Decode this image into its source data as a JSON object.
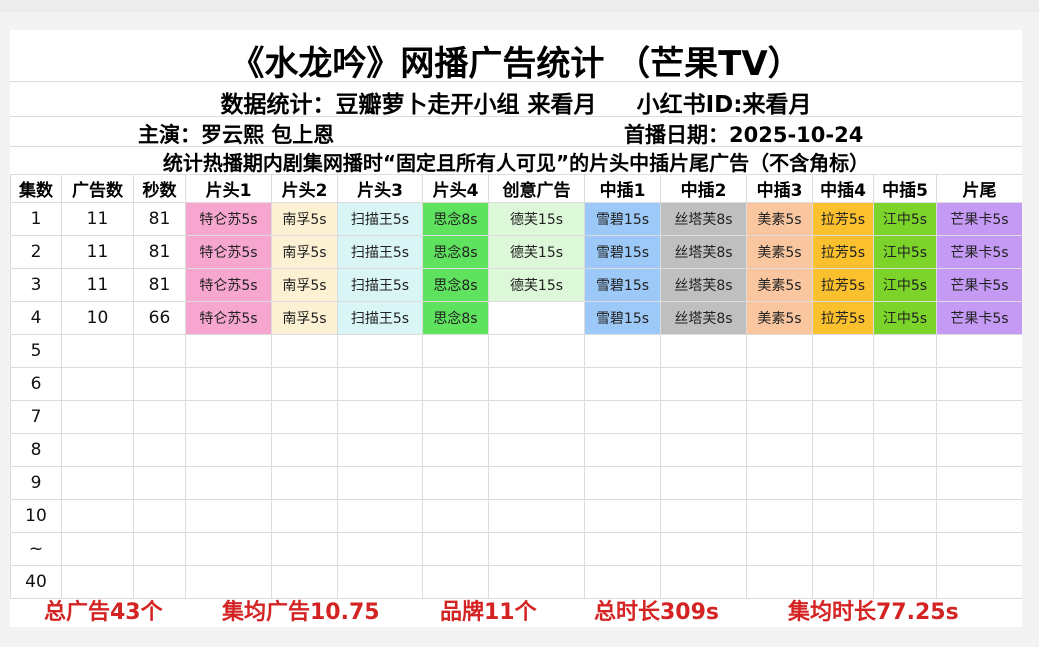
{
  "title": "《水龙吟》网播广告统计 （芒果TV）",
  "subtitle": "数据统计：豆瓣萝卜走开小组 来看月     小红书ID:来看月",
  "actors": "主演：罗云熙 包上恩",
  "premiere": "首播日期：2025-10-24",
  "note": "统计热播期内剧集网播时“固定且所有人可见”的片头中插片尾广告（不含角标）",
  "headers": [
    "集数",
    "广告数",
    "秒数",
    "片头1",
    "片头2",
    "片头3",
    "片头4",
    "创意广告",
    "中插1",
    "中插2",
    "中插3",
    "中插4",
    "中插5",
    "片尾"
  ],
  "slot_colors": [
    "#f7a6cf",
    "#fdf1d4",
    "#d9f5f5",
    "#5fe35f",
    "#ddf8d9",
    "#9cc9f7",
    "#bfbfbf",
    "#f9c6a0",
    "#fbc02d",
    "#7cd42b",
    "#c49af5"
  ],
  "rows": [
    {
      "ep": "1",
      "count": "11",
      "seconds": "81",
      "slots": [
        "特仑苏5s",
        "南孚5s",
        "扫描王5s",
        "思念8s",
        "德芙15s",
        "雪碧15s",
        "丝塔芙8s",
        "美素5s",
        "拉芳5s",
        "江中5s",
        "芒果卡5s"
      ]
    },
    {
      "ep": "2",
      "count": "11",
      "seconds": "81",
      "slots": [
        "特仑苏5s",
        "南孚5s",
        "扫描王5s",
        "思念8s",
        "德芙15s",
        "雪碧15s",
        "丝塔芙8s",
        "美素5s",
        "拉芳5s",
        "江中5s",
        "芒果卡5s"
      ]
    },
    {
      "ep": "3",
      "count": "11",
      "seconds": "81",
      "slots": [
        "特仑苏5s",
        "南孚5s",
        "扫描王5s",
        "思念8s",
        "德芙15s",
        "雪碧15s",
        "丝塔芙8s",
        "美素5s",
        "拉芳5s",
        "江中5s",
        "芒果卡5s"
      ]
    },
    {
      "ep": "4",
      "count": "10",
      "seconds": "66",
      "slots": [
        "特仑苏5s",
        "南孚5s",
        "扫描王5s",
        "思念8s",
        "",
        "雪碧15s",
        "丝塔芙8s",
        "美素5s",
        "拉芳5s",
        "江中5s",
        "芒果卡5s"
      ]
    },
    {
      "ep": "5",
      "count": "",
      "seconds": "",
      "slots": [
        "",
        "",
        "",
        "",
        "",
        "",
        "",
        "",
        "",
        "",
        ""
      ]
    },
    {
      "ep": "6",
      "count": "",
      "seconds": "",
      "slots": [
        "",
        "",
        "",
        "",
        "",
        "",
        "",
        "",
        "",
        "",
        ""
      ]
    },
    {
      "ep": "7",
      "count": "",
      "seconds": "",
      "slots": [
        "",
        "",
        "",
        "",
        "",
        "",
        "",
        "",
        "",
        "",
        ""
      ]
    },
    {
      "ep": "8",
      "count": "",
      "seconds": "",
      "slots": [
        "",
        "",
        "",
        "",
        "",
        "",
        "",
        "",
        "",
        "",
        ""
      ]
    },
    {
      "ep": "9",
      "count": "",
      "seconds": "",
      "slots": [
        "",
        "",
        "",
        "",
        "",
        "",
        "",
        "",
        "",
        "",
        ""
      ]
    },
    {
      "ep": "10",
      "count": "",
      "seconds": "",
      "slots": [
        "",
        "",
        "",
        "",
        "",
        "",
        "",
        "",
        "",
        "",
        ""
      ]
    },
    {
      "ep": "~",
      "count": "",
      "seconds": "",
      "slots": [
        "",
        "",
        "",
        "",
        "",
        "",
        "",
        "",
        "",
        "",
        ""
      ]
    },
    {
      "ep": "40",
      "count": "",
      "seconds": "",
      "slots": [
        "",
        "",
        "",
        "",
        "",
        "",
        "",
        "",
        "",
        "",
        ""
      ]
    }
  ],
  "footer": {
    "total_ads": "总广告43个",
    "avg_ads": "集均广告10.75",
    "brands": "品牌11个",
    "total_duration": "总时长309s",
    "avg_duration": "集均时长77.25s"
  }
}
